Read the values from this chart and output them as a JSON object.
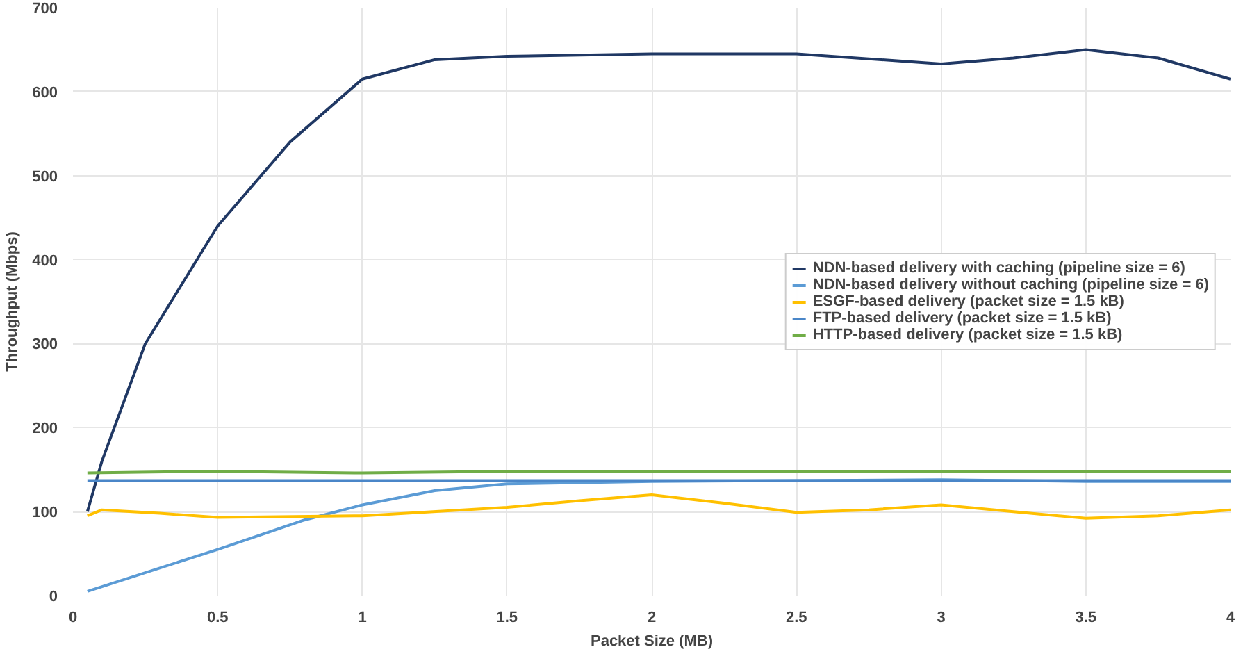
{
  "chart_data": {
    "type": "line",
    "xlabel": "Packet Size (MB)",
    "ylabel": "Throughput (Mbps)",
    "xlim": [
      0,
      4
    ],
    "xticks": [
      0,
      0.5,
      1,
      1.5,
      2,
      2.5,
      3,
      3.5,
      4
    ],
    "ylim": [
      0,
      700
    ],
    "yticks": [
      0,
      100,
      200,
      300,
      400,
      500,
      600,
      700
    ],
    "grid": true,
    "legend": "right",
    "marker": "none",
    "line_style": "solid",
    "series": [
      {
        "name": "NDN-based delivery with caching (pipeline size = 6)",
        "color": "#203864",
        "x": [
          0.05,
          0.1,
          0.25,
          0.5,
          0.75,
          1,
          1.25,
          1.5,
          2,
          2.5,
          3,
          3.25,
          3.5,
          3.75,
          4
        ],
        "values": [
          100,
          160,
          300,
          440,
          540,
          615,
          638,
          642,
          645,
          645,
          633,
          640,
          650,
          640,
          615
        ]
      },
      {
        "name": "NDN-based delivery without caching (pipeline size = 6)",
        "color": "#5b9bd5",
        "x": [
          0.05,
          0.5,
          0.8,
          1,
          1.25,
          1.5,
          2,
          2.5,
          3,
          3.5,
          4
        ],
        "values": [
          5,
          55,
          90,
          108,
          125,
          133,
          136,
          137,
          138,
          136,
          136
        ]
      },
      {
        "name": "ESGF-based delivery (packet size = 1.5 kB)",
        "color": "#ffc000",
        "x": [
          0.05,
          0.1,
          0.3,
          0.5,
          1,
          1.5,
          1.75,
          2,
          2.25,
          2.5,
          2.75,
          3,
          3.25,
          3.5,
          3.75,
          4
        ],
        "values": [
          95,
          102,
          98,
          93,
          95,
          105,
          113,
          120,
          110,
          99,
          102,
          108,
          100,
          92,
          95,
          102
        ]
      },
      {
        "name": "FTP-based delivery (packet size = 1.5 kB)",
        "color": "#4a86c8",
        "x": [
          0.05,
          4
        ],
        "values": [
          137,
          137
        ]
      },
      {
        "name": "HTTP-based delivery (packet size = 1.5 kB)",
        "color": "#70ad47",
        "x": [
          0.05,
          0.5,
          1,
          1.5,
          2,
          3,
          4
        ],
        "values": [
          146,
          148,
          146,
          148,
          148,
          148,
          148
        ]
      }
    ]
  }
}
